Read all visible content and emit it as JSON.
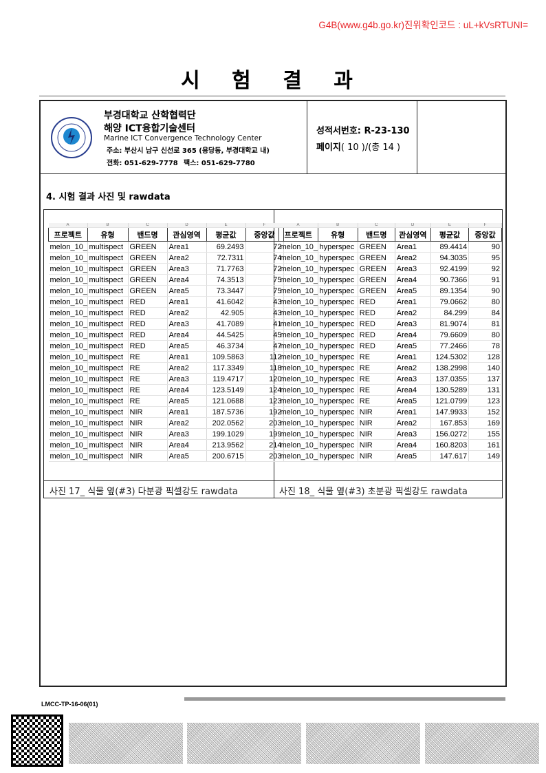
{
  "verification": "G4B(www.g4b.go.kr)진위확인코드 : uL+kVsRTUNI=",
  "title": "시 험 결 과",
  "header": {
    "org_name": "부경대학교 산학협력단",
    "center_name": "해양 ICT융합기술센터",
    "center_en": "Marine ICT Convergence Technology Center",
    "address": "주소: 부산시 남구 신선로 365 (용당동, 부경대학교 내)",
    "phone": "전화: 051-629-7778",
    "fax": "팩스:  051-629-7780",
    "logo_text": "PUKYONG NATIONAL UNIVERSITY 부경대학교",
    "report_no": "성적서번호: R-23-130",
    "page_label": "페이지",
    "page_info": "( 10 )/(총 14 )"
  },
  "section_title": "4. 시험 결과 사진 및 rawdata",
  "tables": [
    {
      "caption": "사진 17_ 식물 옆(#3) 다분광 픽셀강도 rawdata",
      "col_letters": [
        "A",
        "B",
        "C",
        "D",
        "E",
        "F"
      ],
      "headers": [
        "프로젝트",
        "유형",
        "밴드명",
        "관심영역",
        "평균값",
        "중앙값"
      ],
      "rows": [
        [
          "melon_10_",
          "multispect",
          "GREEN",
          "Area1",
          "69.2493",
          "72"
        ],
        [
          "melon_10_",
          "multispect",
          "GREEN",
          "Area2",
          "72.7311",
          "74"
        ],
        [
          "melon_10_",
          "multispect",
          "GREEN",
          "Area3",
          "71.7763",
          "72"
        ],
        [
          "melon_10_",
          "multispect",
          "GREEN",
          "Area4",
          "74.3513",
          "75"
        ],
        [
          "melon_10_",
          "multispect",
          "GREEN",
          "Area5",
          "73.3447",
          "75"
        ],
        [
          "melon_10_",
          "multispect",
          "RED",
          "Area1",
          "41.6042",
          "43"
        ],
        [
          "melon_10_",
          "multispect",
          "RED",
          "Area2",
          "42.905",
          "43"
        ],
        [
          "melon_10_",
          "multispect",
          "RED",
          "Area3",
          "41.7089",
          "41"
        ],
        [
          "melon_10_",
          "multispect",
          "RED",
          "Area4",
          "44.5425",
          "45"
        ],
        [
          "melon_10_",
          "multispect",
          "RED",
          "Area5",
          "46.3734",
          "47"
        ],
        [
          "melon_10_",
          "multispect",
          "RE",
          "Area1",
          "109.5863",
          "112"
        ],
        [
          "melon_10_",
          "multispect",
          "RE",
          "Area2",
          "117.3349",
          "118"
        ],
        [
          "melon_10_",
          "multispect",
          "RE",
          "Area3",
          "119.4717",
          "120"
        ],
        [
          "melon_10_",
          "multispect",
          "RE",
          "Area4",
          "123.5149",
          "124"
        ],
        [
          "melon_10_",
          "multispect",
          "RE",
          "Area5",
          "121.0688",
          "123"
        ],
        [
          "melon_10_",
          "multispect",
          "NIR",
          "Area1",
          "187.5736",
          "192"
        ],
        [
          "melon_10_",
          "multispect",
          "NIR",
          "Area2",
          "202.0562",
          "203"
        ],
        [
          "melon_10_",
          "multispect",
          "NIR",
          "Area3",
          "199.1029",
          "199"
        ],
        [
          "melon_10_",
          "multispect",
          "NIR",
          "Area4",
          "213.9562",
          "214"
        ],
        [
          "melon_10_",
          "multispect",
          "NIR",
          "Area5",
          "200.6715",
          "203"
        ]
      ]
    },
    {
      "caption": "사진 18_ 식물 옆(#3) 초분광 픽셀강도 rawdata",
      "col_letters": [
        "A",
        "B",
        "C",
        "D",
        "E",
        "F"
      ],
      "headers": [
        "프로젝트",
        "유형",
        "밴드명",
        "관심영역",
        "평균값",
        "중앙값"
      ],
      "rows": [
        [
          "melon_10_",
          "hyperspec",
          "GREEN",
          "Area1",
          "89.4414",
          "90"
        ],
        [
          "melon_10_",
          "hyperspec",
          "GREEN",
          "Area2",
          "94.3035",
          "95"
        ],
        [
          "melon_10_",
          "hyperspec",
          "GREEN",
          "Area3",
          "92.4199",
          "92"
        ],
        [
          "melon_10_",
          "hyperspec",
          "GREEN",
          "Area4",
          "90.7366",
          "91"
        ],
        [
          "melon_10_",
          "hyperspec",
          "GREEN",
          "Area5",
          "89.1354",
          "90"
        ],
        [
          "melon_10_",
          "hyperspec",
          "RED",
          "Area1",
          "79.0662",
          "80"
        ],
        [
          "melon_10_",
          "hyperspec",
          "RED",
          "Area2",
          "84.299",
          "84"
        ],
        [
          "melon_10_",
          "hyperspec",
          "RED",
          "Area3",
          "81.9074",
          "81"
        ],
        [
          "melon_10_",
          "hyperspec",
          "RED",
          "Area4",
          "79.6609",
          "80"
        ],
        [
          "melon_10_",
          "hyperspec",
          "RED",
          "Area5",
          "77.2466",
          "78"
        ],
        [
          "melon_10_",
          "hyperspec",
          "RE",
          "Area1",
          "124.5302",
          "128"
        ],
        [
          "melon_10_",
          "hyperspec",
          "RE",
          "Area2",
          "138.2998",
          "140"
        ],
        [
          "melon_10_",
          "hyperspec",
          "RE",
          "Area3",
          "137.0355",
          "137"
        ],
        [
          "melon_10_",
          "hyperspec",
          "RE",
          "Area4",
          "130.5289",
          "131"
        ],
        [
          "melon_10_",
          "hyperspec",
          "RE",
          "Area5",
          "121.0799",
          "123"
        ],
        [
          "melon_10_",
          "hyperspec",
          "NIR",
          "Area1",
          "147.9933",
          "152"
        ],
        [
          "melon_10_",
          "hyperspec",
          "NIR",
          "Area2",
          "167.853",
          "169"
        ],
        [
          "melon_10_",
          "hyperspec",
          "NIR",
          "Area3",
          "156.0272",
          "155"
        ],
        [
          "melon_10_",
          "hyperspec",
          "NIR",
          "Area4",
          "160.8203",
          "161"
        ],
        [
          "melon_10_",
          "hyperspec",
          "NIR",
          "Area5",
          "147.617",
          "149"
        ]
      ]
    }
  ],
  "footer": {
    "form_code": "LMCC-TP-16-06(01)"
  }
}
